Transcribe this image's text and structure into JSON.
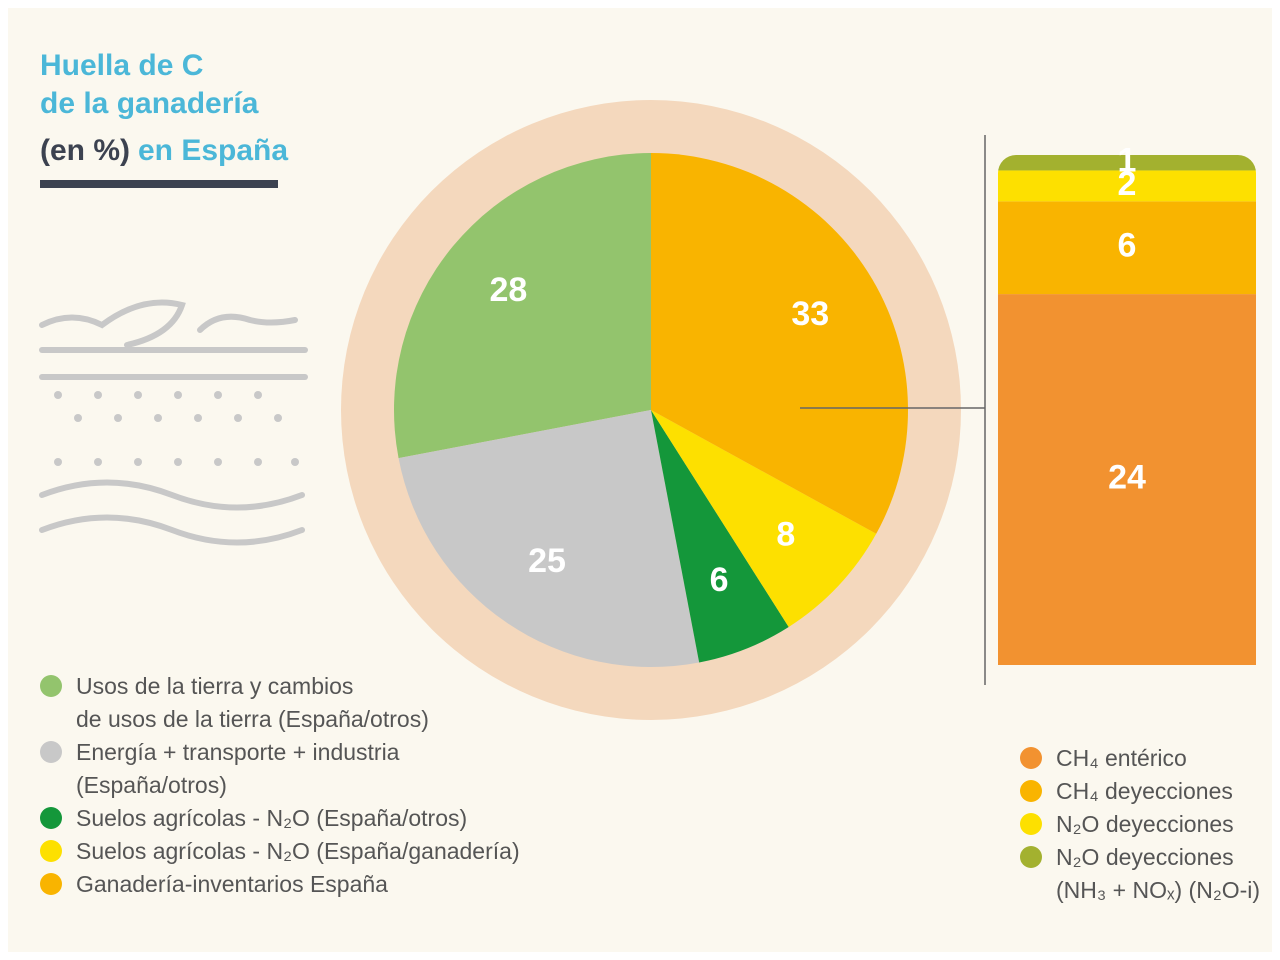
{
  "title_lines": [
    "Huella de C",
    "de la ganadería",
    "(en %)",
    "en España"
  ],
  "chart_data": [
    {
      "type": "pie",
      "startangle": 90,
      "direction": "counterclockwise",
      "categories": [
        "Usos de la tierra y cambios\nde usos de la tierra (España/otros)",
        "Energía + transporte + industria\n(España/otros)",
        "Suelos agrícolas - N₂O (España/otros)",
        "Suelos agrícolas - N₂O (España/ganadería)",
        "Ganadería-inventarios España"
      ],
      "values": [
        28,
        25,
        6,
        8,
        33
      ],
      "colors": [
        "#93c46d",
        "#c8c8c8",
        "#14973a",
        "#fde000",
        "#f9b400"
      ]
    },
    {
      "type": "stacked_bar",
      "series": [
        {
          "name": "CH₄ entérico",
          "color": "#f29230",
          "values": [
            24
          ]
        },
        {
          "name": "CH₄ deyecciones",
          "color": "#f9b400",
          "values": [
            6
          ]
        },
        {
          "name": "N₂O deyecciones",
          "color": "#fde000",
          "values": [
            2
          ]
        },
        {
          "name": "N₂O deyecciones\n(NH₃ + NOₓ) (N₂O-i)",
          "color": "#a3b12f",
          "values": [
            1
          ]
        }
      ]
    }
  ]
}
